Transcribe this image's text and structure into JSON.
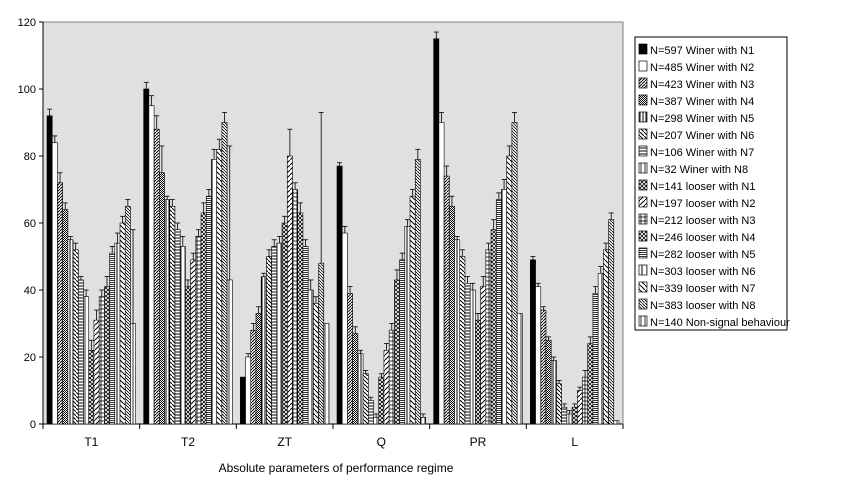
{
  "chart_data": {
    "type": "bar",
    "title": "",
    "xlabel": "Absolute parameters of performance regime",
    "ylabel": "",
    "ylim": [
      0,
      120
    ],
    "yticks": [
      0,
      20,
      40,
      60,
      80,
      100,
      120
    ],
    "grid": false,
    "legend_position": "right",
    "plot_background": "#e0e0e0",
    "categories": [
      "T1",
      "T2",
      "ZT",
      "Q",
      "PR",
      "L"
    ],
    "series": [
      {
        "name": "N=597 Winer with N1",
        "pattern": "solid-black",
        "values": [
          92,
          100,
          14,
          77,
          115,
          49
        ],
        "errors": [
          2,
          2,
          0,
          1,
          2,
          1
        ]
      },
      {
        "name": "N=485 Winer with N2",
        "pattern": "white",
        "values": [
          84,
          95,
          20,
          57,
          90,
          41
        ],
        "errors": [
          2,
          3,
          1,
          2,
          3,
          1
        ]
      },
      {
        "name": "N=423 Winer with N3",
        "pattern": "hatch-dense",
        "values": [
          72,
          88,
          28,
          39,
          74,
          34
        ],
        "errors": [
          3,
          4,
          2,
          2,
          3,
          1
        ]
      },
      {
        "name": "N=387 Winer with N4",
        "pattern": "dots-dark",
        "values": [
          64,
          75,
          33,
          27,
          65,
          25
        ],
        "errors": [
          2,
          8,
          2,
          2,
          3,
          1
        ]
      },
      {
        "name": "N=298 Winer with N5",
        "pattern": "vlines",
        "values": [
          55,
          67,
          44,
          21,
          55,
          19
        ],
        "errors": [
          1,
          1,
          1,
          1,
          1,
          1
        ]
      },
      {
        "name": "N=207 Winer with N6",
        "pattern": "hatch-back",
        "values": [
          52,
          65,
          50,
          15,
          50,
          12
        ],
        "errors": [
          2,
          2,
          2,
          1,
          2,
          1
        ]
      },
      {
        "name": "N=106 Winer with N7",
        "pattern": "hlines",
        "values": [
          43,
          58,
          53,
          7,
          42,
          5
        ],
        "errors": [
          1,
          2,
          2,
          1,
          2,
          1
        ]
      },
      {
        "name": "N=32 Winer with N8",
        "pattern": "vlines-thin",
        "values": [
          38,
          53,
          54,
          2,
          40,
          3
        ],
        "errors": [
          2,
          3,
          2,
          1,
          2,
          1
        ]
      },
      {
        "name": "N=141 looser with N1",
        "pattern": "cross",
        "values": [
          22,
          41,
          60,
          14,
          31,
          5
        ],
        "errors": [
          3,
          2,
          2,
          1,
          2,
          1
        ]
      },
      {
        "name": "N=197 looser with N2",
        "pattern": "hatch-sparse",
        "values": [
          31,
          49,
          80,
          22,
          41,
          10
        ],
        "errors": [
          3,
          2,
          8,
          2,
          3,
          1
        ]
      },
      {
        "name": "N=212 looser with N3",
        "pattern": "grid",
        "values": [
          38,
          56,
          70,
          28,
          52,
          14
        ],
        "errors": [
          2,
          2,
          2,
          2,
          2,
          2
        ]
      },
      {
        "name": "N=246 looser with N4",
        "pattern": "diamond",
        "values": [
          41,
          63,
          63,
          43,
          58,
          24
        ],
        "errors": [
          3,
          3,
          3,
          3,
          3,
          2
        ]
      },
      {
        "name": "N=282 looser with N5",
        "pattern": "hlines-dense",
        "values": [
          51,
          68,
          53,
          49,
          67,
          39
        ],
        "errors": [
          2,
          2,
          2,
          2,
          2,
          2
        ]
      },
      {
        "name": "N=303 looser with N6",
        "pattern": "vlines-wide",
        "values": [
          54,
          79,
          40,
          59,
          70,
          45
        ],
        "errors": [
          3,
          3,
          3,
          2,
          3,
          2
        ]
      },
      {
        "name": "N=339 looser with N7",
        "pattern": "hatch-back-sparse",
        "values": [
          60,
          82,
          36,
          68,
          80,
          52
        ],
        "errors": [
          2,
          3,
          2,
          2,
          3,
          2
        ]
      },
      {
        "name": "N=383 looser with N8",
        "pattern": "hatch-fine",
        "values": [
          65,
          90,
          48,
          79,
          90,
          61
        ],
        "errors": [
          2,
          3,
          45,
          3,
          3,
          2
        ]
      },
      {
        "name": "N=140 Non-signal behaviour",
        "pattern": "vlines-thin",
        "values": [
          30,
          43,
          30,
          2,
          33,
          1
        ],
        "errors": [
          28,
          40,
          0,
          1,
          0,
          0
        ]
      }
    ]
  }
}
